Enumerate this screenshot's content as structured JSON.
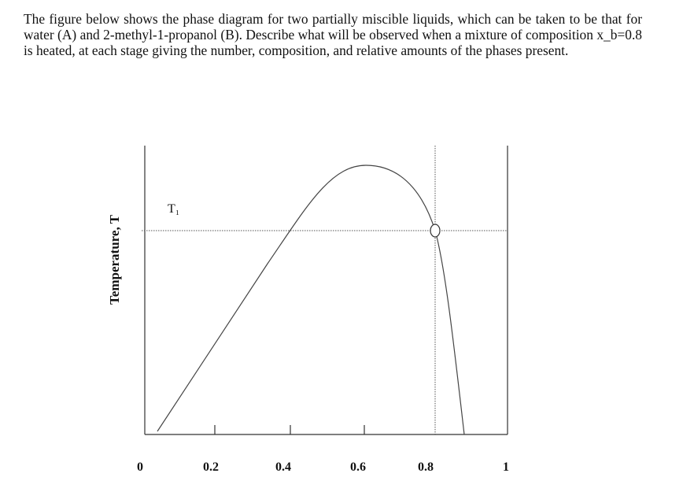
{
  "question": "The figure below shows the phase diagram for two partially miscible liquids, which can be taken to be that for water (A) and 2-methyl-1-propanol (B). Describe what will be observed when a mixture of composition x_b=0.8 is heated, at each stage giving the number, composition, and relative amounts of the phases present.",
  "figure": {
    "y_label": "Temperature, T",
    "t_label": "T₁",
    "x_tick_labels": [
      "0",
      "0.2",
      "0.4",
      "0.6",
      "0.8",
      "1"
    ]
  }
}
